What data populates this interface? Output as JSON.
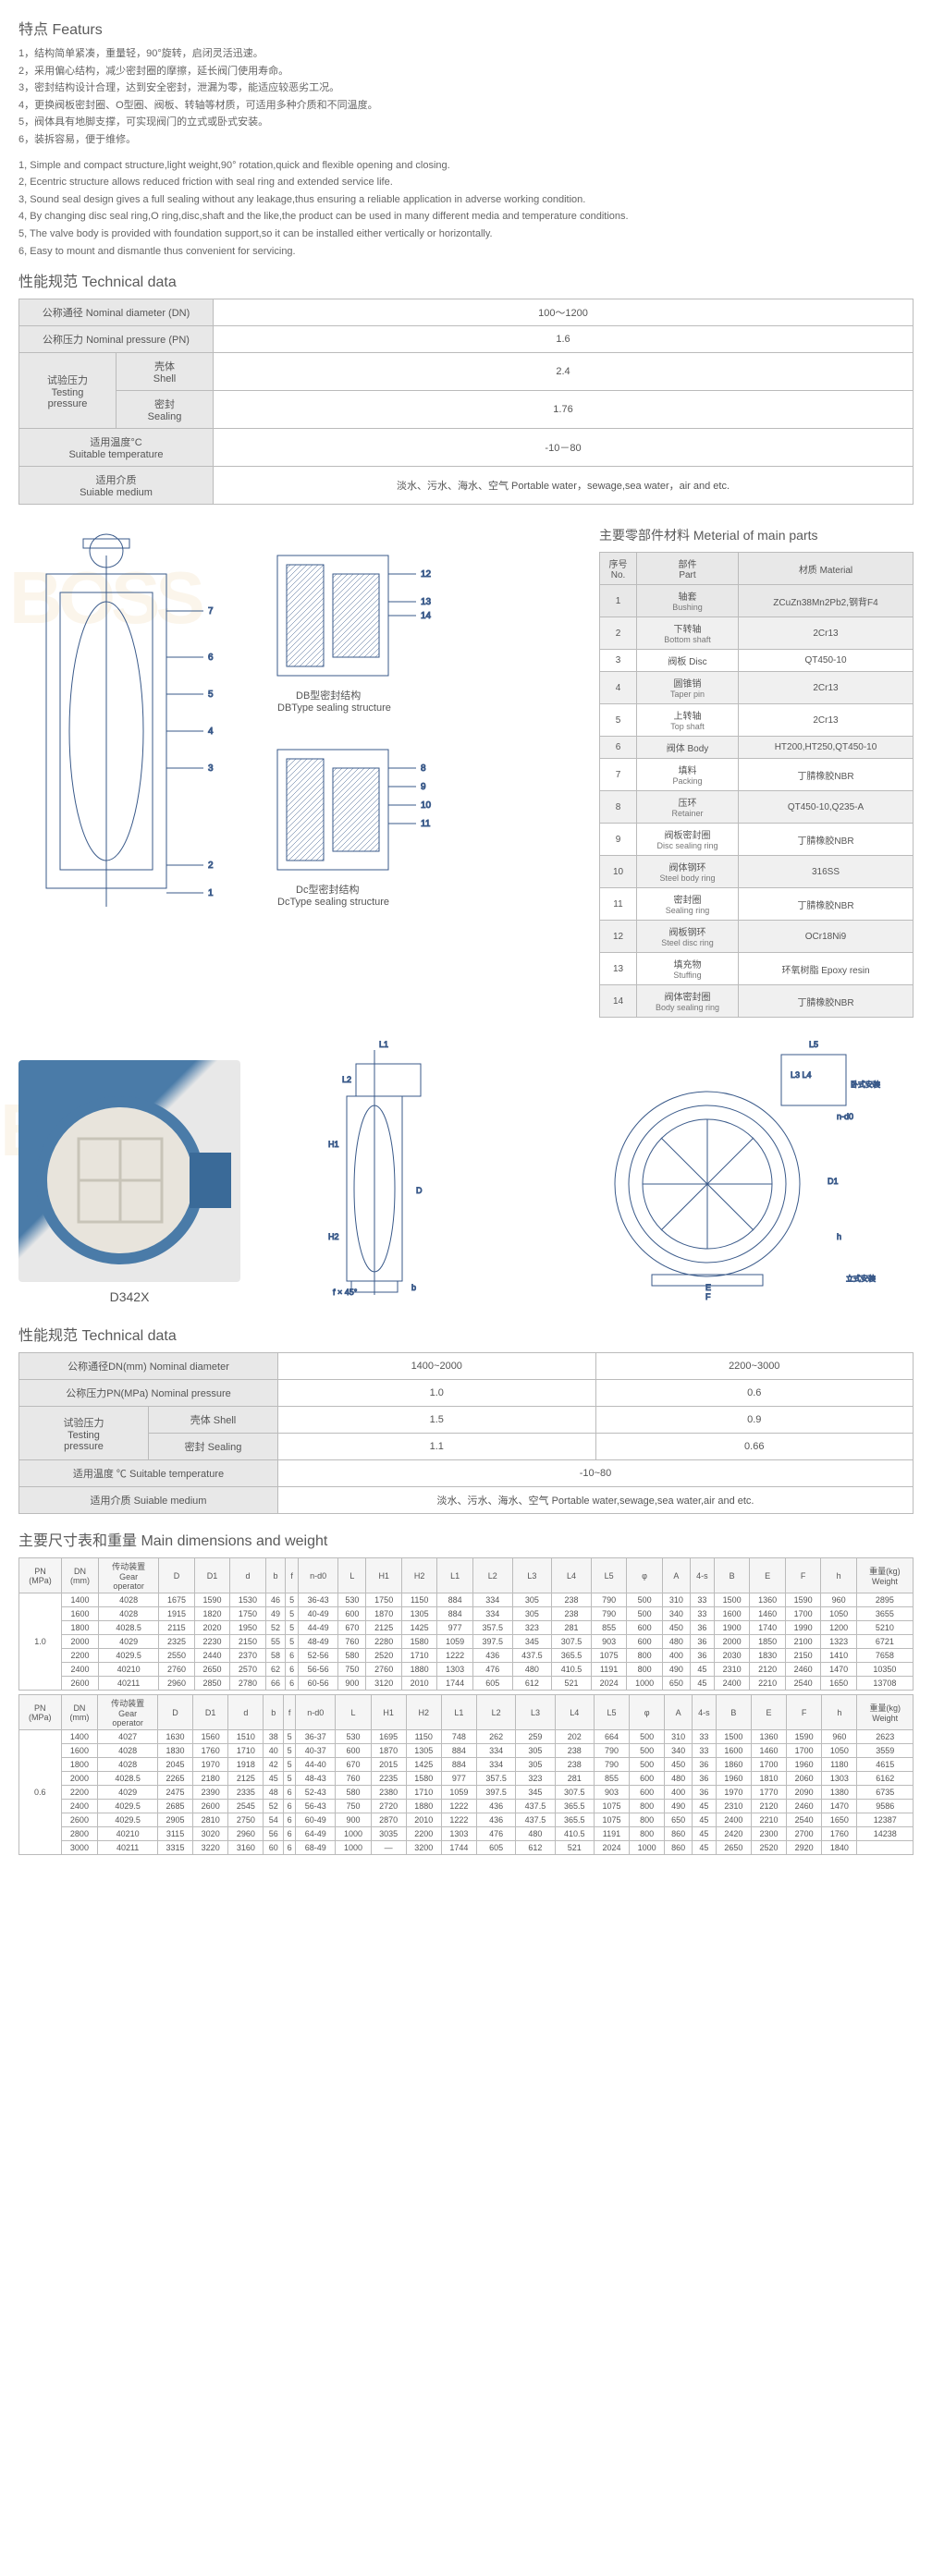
{
  "features": {
    "title": "特点 Featurs",
    "cn": [
      "1，结构简单紧凑，重量轻，90°旋转，启闭灵活迅速。",
      "2，采用偏心结构，减少密封圈的摩擦，延长阀门使用寿命。",
      "3，密封结构设计合理，达到安全密封，泄漏为零，能适应较恶劣工况。",
      "4，更换阀板密封圈、O型圈、阀板、转轴等材质，可适用多种介质和不同温度。",
      "5，阀体具有地脚支撑，可实现阀门的立式或卧式安装。",
      "6，装拆容易，便于维修。"
    ],
    "en": [
      "1, Simple and compact structure,light weight,90° rotation,quick and flexible opening and closing.",
      "2, Ecentric structure allows reduced friction with seal ring and extended service life.",
      "3, Sound seal design gives a full sealing without any leakage,thus ensuring a reliable application in adverse working condition.",
      "4, By changing disc seal ring,O ring,disc,shaft and the like,the product can be used in many different media and temperature conditions.",
      "5, The valve body is provided with foundation support,so it can be installed either vertically or horizontally.",
      "6, Easy to mount and dismantle thus convenient for servicing."
    ]
  },
  "tech1": {
    "title": "性能规范 Technical data",
    "rows": [
      {
        "label": "公称通径 Nominal diameter (DN)",
        "value": "100～1200",
        "span": 2
      },
      {
        "label": "公称压力 Nominal pressure (PN)",
        "value": "1.6",
        "span": 2
      }
    ],
    "test": {
      "label": "试验压力\nTesting\npressure",
      "shell_label": "壳体\nShell",
      "shell_value": "2.4",
      "seal_label": "密封\nSealing",
      "seal_value": "1.76"
    },
    "temp_label": "适用温度°C\nSuitable temperature",
    "temp_value": "-10－80",
    "medium_label": "适用介质\nSuiable medium",
    "medium_value": "淡水、污水、海水、空气 Portable water，sewage,sea water，air and etc."
  },
  "materials": {
    "title": "主要零部件材料 Meterial of main parts",
    "headers": {
      "no": "序号\nNo.",
      "part": "部件\nPart",
      "material": "材质 Material"
    },
    "rows": [
      {
        "no": "1",
        "part_cn": "轴套",
        "part_en": "Bushing",
        "mat": "ZCuZn38Mn2Pb2,钢背F4"
      },
      {
        "no": "2",
        "part_cn": "下转轴",
        "part_en": "Bottom shaft",
        "mat": "2Cr13"
      },
      {
        "no": "3",
        "part_cn": "阀板 Disc",
        "part_en": "",
        "mat": "QT450-10"
      },
      {
        "no": "4",
        "part_cn": "圆锥销",
        "part_en": "Taper pin",
        "mat": "2Cr13"
      },
      {
        "no": "5",
        "part_cn": "上转轴",
        "part_en": "Top shaft",
        "mat": "2Cr13"
      },
      {
        "no": "6",
        "part_cn": "阀体 Body",
        "part_en": "",
        "mat": "HT200,HT250,QT450-10"
      },
      {
        "no": "7",
        "part_cn": "填料",
        "part_en": "Packing",
        "mat": "丁腈橡胶NBR"
      },
      {
        "no": "8",
        "part_cn": "压环",
        "part_en": "Retainer",
        "mat": "QT450-10,Q235-A"
      },
      {
        "no": "9",
        "part_cn": "阀板密封圈",
        "part_en": "Disc sealing ring",
        "mat": "丁腈橡胶NBR"
      },
      {
        "no": "10",
        "part_cn": "阀体钢环",
        "part_en": "Steel body ring",
        "mat": "316SS"
      },
      {
        "no": "11",
        "part_cn": "密封圈",
        "part_en": "Sealing ring",
        "mat": "丁腈橡胶NBR"
      },
      {
        "no": "12",
        "part_cn": "阀板钢环",
        "part_en": "Steel disc ring",
        "mat": "OCr18Ni9"
      },
      {
        "no": "13",
        "part_cn": "填充物",
        "part_en": "Stuffing",
        "mat": "环氧树脂 Epoxy resin"
      },
      {
        "no": "14",
        "part_cn": "阀体密封圈",
        "part_en": "Body sealing ring",
        "mat": "丁腈橡胶NBR"
      }
    ]
  },
  "diagram": {
    "db_caption": "DB型密封结构\nDBType sealing structure",
    "dc_caption": "Dc型密封结构\nDcType sealing structure"
  },
  "product": {
    "label": "D342X"
  },
  "tech2": {
    "title": "性能规范 Technical data",
    "dn_label": "公称通径DN(mm) Nominal diameter",
    "dn_v1": "1400~2000",
    "dn_v2": "2200~3000",
    "pn_label": "公称压力PN(MPa) Nominal pressure",
    "pn_v1": "1.0",
    "pn_v2": "0.6",
    "test_label": "试验压力\nTesting\npressure",
    "shell_label": "壳体 Shell",
    "shell_v1": "1.5",
    "shell_v2": "0.9",
    "seal_label": "密封 Sealing",
    "seal_v1": "1.1",
    "seal_v2": "0.66",
    "temp_label": "适用温度 ℃ Suitable temperature",
    "temp_value": "-10~80",
    "medium_label": "适用介质 Suiable medium",
    "medium_value": "淡水、污水、海水、空气 Portable water,sewage,sea water,air and etc."
  },
  "dims": {
    "title": "主要尺寸表和重量 Main dimensions and weight",
    "headers": [
      "PN\n(MPa)",
      "DN\n(mm)",
      "传动装置\nGear\noperator",
      "D",
      "D1",
      "d",
      "b",
      "f",
      "n-d0",
      "L",
      "H1",
      "H2",
      "L1",
      "L2",
      "L3",
      "L4",
      "L5",
      "φ",
      "A",
      "4-s",
      "B",
      "E",
      "F",
      "h",
      "重量(kg)\nWeight"
    ],
    "group1": {
      "pn": "1.0",
      "rows": [
        [
          "1400",
          "4028",
          "1675",
          "1590",
          "1530",
          "46",
          "5",
          "36-43",
          "530",
          "1750",
          "1150",
          "884",
          "334",
          "305",
          "238",
          "790",
          "500",
          "310",
          "33",
          "1500",
          "1360",
          "1590",
          "960",
          "2895"
        ],
        [
          "1600",
          "4028",
          "1915",
          "1820",
          "1750",
          "49",
          "5",
          "40-49",
          "600",
          "1870",
          "1305",
          "884",
          "334",
          "305",
          "238",
          "790",
          "500",
          "340",
          "33",
          "1600",
          "1460",
          "1700",
          "1050",
          "3655"
        ],
        [
          "1800",
          "4028.5",
          "2115",
          "2020",
          "1950",
          "52",
          "5",
          "44-49",
          "670",
          "2125",
          "1425",
          "977",
          "357.5",
          "323",
          "281",
          "855",
          "600",
          "450",
          "36",
          "1900",
          "1740",
          "1990",
          "1200",
          "5210"
        ],
        [
          "2000",
          "4029",
          "2325",
          "2230",
          "2150",
          "55",
          "5",
          "48-49",
          "760",
          "2280",
          "1580",
          "1059",
          "397.5",
          "345",
          "307.5",
          "903",
          "600",
          "480",
          "36",
          "2000",
          "1850",
          "2100",
          "1323",
          "6721"
        ],
        [
          "2200",
          "4029.5",
          "2550",
          "2440",
          "2370",
          "58",
          "6",
          "52-56",
          "580",
          "2520",
          "1710",
          "1222",
          "436",
          "437.5",
          "365.5",
          "1075",
          "800",
          "400",
          "36",
          "2030",
          "1830",
          "2150",
          "1410",
          "7658"
        ],
        [
          "2400",
          "40210",
          "2760",
          "2650",
          "2570",
          "62",
          "6",
          "56-56",
          "750",
          "2760",
          "1880",
          "1303",
          "476",
          "480",
          "410.5",
          "1191",
          "800",
          "490",
          "45",
          "2310",
          "2120",
          "2460",
          "1470",
          "10350"
        ],
        [
          "2600",
          "40211",
          "2960",
          "2850",
          "2780",
          "66",
          "6",
          "60-56",
          "900",
          "3120",
          "2010",
          "1744",
          "605",
          "612",
          "521",
          "2024",
          "1000",
          "650",
          "45",
          "2400",
          "2210",
          "2540",
          "1650",
          "13708"
        ]
      ]
    },
    "group2": {
      "pn": "0.6",
      "rows": [
        [
          "1400",
          "4027",
          "1630",
          "1560",
          "1510",
          "38",
          "5",
          "36-37",
          "530",
          "1695",
          "1150",
          "748",
          "262",
          "259",
          "202",
          "664",
          "500",
          "310",
          "33",
          "1500",
          "1360",
          "1590",
          "960",
          "2623"
        ],
        [
          "1600",
          "4028",
          "1830",
          "1760",
          "1710",
          "40",
          "5",
          "40-37",
          "600",
          "1870",
          "1305",
          "884",
          "334",
          "305",
          "238",
          "790",
          "500",
          "340",
          "33",
          "1600",
          "1460",
          "1700",
          "1050",
          "3559"
        ],
        [
          "1800",
          "4028",
          "2045",
          "1970",
          "1918",
          "42",
          "5",
          "44-40",
          "670",
          "2015",
          "1425",
          "884",
          "334",
          "305",
          "238",
          "790",
          "500",
          "450",
          "36",
          "1860",
          "1700",
          "1960",
          "1180",
          "4615"
        ],
        [
          "2000",
          "4028.5",
          "2265",
          "2180",
          "2125",
          "45",
          "5",
          "48-43",
          "760",
          "2235",
          "1580",
          "977",
          "357.5",
          "323",
          "281",
          "855",
          "600",
          "480",
          "36",
          "1960",
          "1810",
          "2060",
          "1303",
          "6162"
        ],
        [
          "2200",
          "4029",
          "2475",
          "2390",
          "2335",
          "48",
          "6",
          "52-43",
          "580",
          "2380",
          "1710",
          "1059",
          "397.5",
          "345",
          "307.5",
          "903",
          "600",
          "400",
          "36",
          "1970",
          "1770",
          "2090",
          "1380",
          "6735"
        ],
        [
          "2400",
          "4029.5",
          "2685",
          "2600",
          "2545",
          "52",
          "6",
          "56-43",
          "750",
          "2720",
          "1880",
          "1222",
          "436",
          "437.5",
          "365.5",
          "1075",
          "800",
          "490",
          "45",
          "2310",
          "2120",
          "2460",
          "1470",
          "9586"
        ],
        [
          "2600",
          "4029.5",
          "2905",
          "2810",
          "2750",
          "54",
          "6",
          "60-49",
          "900",
          "2870",
          "2010",
          "1222",
          "436",
          "437.5",
          "365.5",
          "1075",
          "800",
          "650",
          "45",
          "2400",
          "2210",
          "2540",
          "1650",
          "12387"
        ],
        [
          "2800",
          "40210",
          "3115",
          "3020",
          "2960",
          "56",
          "6",
          "64-49",
          "1000",
          "3035",
          "2200",
          "1303",
          "476",
          "480",
          "410.5",
          "1191",
          "800",
          "860",
          "45",
          "2420",
          "2300",
          "2700",
          "1760",
          "14238"
        ],
        [
          "3000",
          "40211",
          "3315",
          "3220",
          "3160",
          "60",
          "6",
          "68-49",
          "1000",
          "—",
          "3200",
          "1744",
          "605",
          "612",
          "521",
          "2024",
          "1000",
          "860",
          "45",
          "2650",
          "2520",
          "2920",
          "1840",
          ""
        ]
      ]
    }
  },
  "colors": {
    "border": "#bbbbbb",
    "header_bg": "#e8e8e8",
    "text": "#555555",
    "watermark": "rgba(230,190,120,0.15)"
  }
}
